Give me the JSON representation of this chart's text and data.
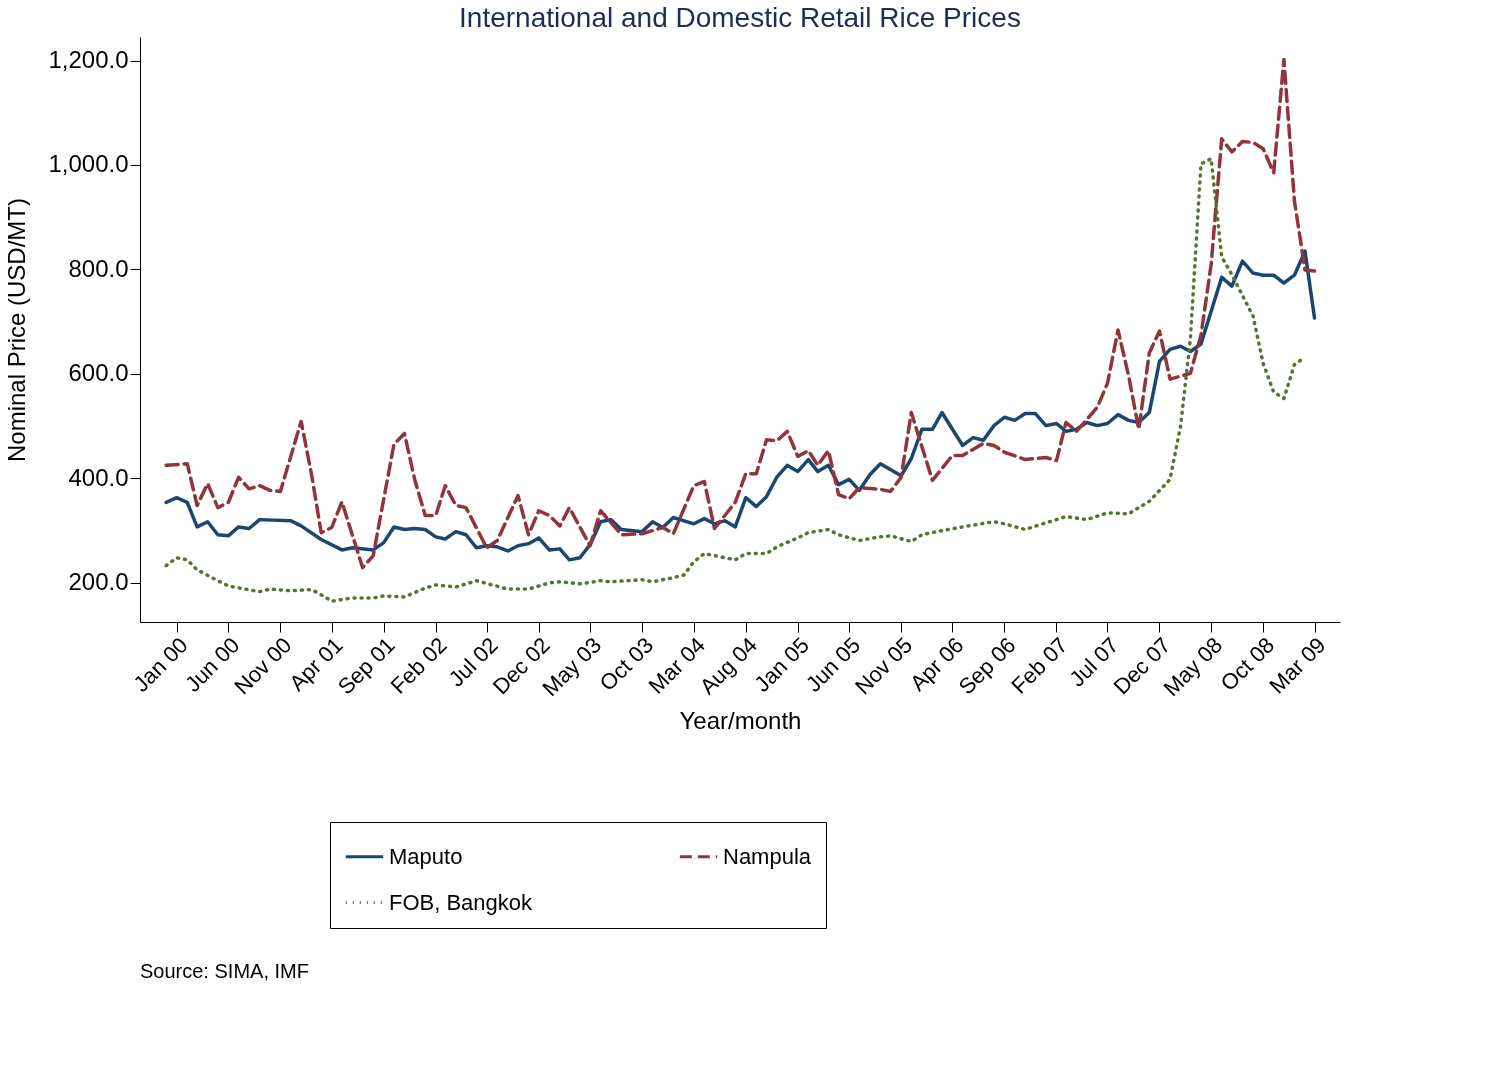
{
  "chart_data": {
    "type": "line",
    "title": "International and Domestic Retail Rice Prices",
    "xlabel": "Year/month",
    "ylabel": "Nominal Price (USD/MT)",
    "xlim": [
      "1999-09-15",
      "2009-05-15"
    ],
    "xticks": [
      {
        "value": "2000-01",
        "label": "Jan 00"
      },
      {
        "value": "2000-06",
        "label": "Jun 00"
      },
      {
        "value": "2000-11",
        "label": "Nov 00"
      },
      {
        "value": "2001-04",
        "label": "Apr 01"
      },
      {
        "value": "2001-09",
        "label": "Sep 01"
      },
      {
        "value": "2002-02",
        "label": "Feb 02"
      },
      {
        "value": "2002-07",
        "label": "Jul 02"
      },
      {
        "value": "2002-12",
        "label": "Dec 02"
      },
      {
        "value": "2003-05",
        "label": "May 03"
      },
      {
        "value": "2003-10",
        "label": "Oct 03"
      },
      {
        "value": "2004-03",
        "label": "Mar 04"
      },
      {
        "value": "2004-08",
        "label": "Aug 04"
      },
      {
        "value": "2005-01",
        "label": "Jan 05"
      },
      {
        "value": "2005-06",
        "label": "Jun 05"
      },
      {
        "value": "2005-11",
        "label": "Nov 05"
      },
      {
        "value": "2006-04",
        "label": "Apr 06"
      },
      {
        "value": "2006-09",
        "label": "Sep 06"
      },
      {
        "value": "2007-02",
        "label": "Feb 07"
      },
      {
        "value": "2007-07",
        "label": "Jul 07"
      },
      {
        "value": "2007-12",
        "label": "Dec 07"
      },
      {
        "value": "2008-05",
        "label": "May 08"
      },
      {
        "value": "2008-10",
        "label": "Oct 08"
      },
      {
        "value": "2009-03",
        "label": "Mar 09"
      }
    ],
    "ylim": [
      125,
      1245
    ],
    "yticks": [
      {
        "value": 200,
        "label": "200.0"
      },
      {
        "value": 400,
        "label": "400.0"
      },
      {
        "value": 600,
        "label": "600.0"
      },
      {
        "value": 800,
        "label": "800.0"
      },
      {
        "value": 1000,
        "label": "1,000.0"
      },
      {
        "value": 1200,
        "label": "1,200.0"
      }
    ],
    "grid": false,
    "legend": "bottom",
    "annotations": [
      "Source: SIMA, IMF"
    ],
    "series": [
      {
        "name": "Maputo",
        "color": "#1a476f",
        "line_style": "solid",
        "x": [
          "1999-12",
          "2000-01",
          "2000-02",
          "2000-03",
          "2000-04",
          "2000-05",
          "2000-06",
          "2000-07",
          "2000-08",
          "2000-09",
          "2000-12",
          "2001-01",
          "2001-03",
          "2001-05",
          "2001-06",
          "2001-08",
          "2001-09",
          "2001-10",
          "2001-11",
          "2001-12",
          "2002-01",
          "2002-02",
          "2002-03",
          "2002-04",
          "2002-05",
          "2002-06",
          "2002-07",
          "2002-08",
          "2002-09",
          "2002-10",
          "2002-11",
          "2002-12",
          "2003-01",
          "2003-02",
          "2003-03",
          "2003-04",
          "2003-05",
          "2003-06",
          "2003-07",
          "2003-08",
          "2003-10",
          "2003-11",
          "2003-12",
          "2004-01",
          "2004-03",
          "2004-04",
          "2004-05",
          "2004-06",
          "2004-07",
          "2004-08",
          "2004-09",
          "2004-10",
          "2004-11",
          "2004-12",
          "2005-01",
          "2005-02",
          "2005-03",
          "2005-04",
          "2005-05",
          "2005-06",
          "2005-07",
          "2005-08",
          "2005-09",
          "2005-11",
          "2005-12",
          "2006-01",
          "2006-02",
          "2006-03",
          "2006-05",
          "2006-06",
          "2006-07",
          "2006-08",
          "2006-09",
          "2006-10",
          "2006-11",
          "2006-12",
          "2007-01",
          "2007-02",
          "2007-03",
          "2007-04",
          "2007-05",
          "2007-06",
          "2007-07",
          "2007-08",
          "2007-09",
          "2007-10",
          "2007-11",
          "2007-12",
          "2008-01",
          "2008-02",
          "2008-03",
          "2008-04",
          "2008-06",
          "2008-07",
          "2008-08",
          "2008-09",
          "2008-10",
          "2008-11",
          "2008-12",
          "2009-01",
          "2009-02",
          "2009-03"
        ],
        "values": [
          354,
          363,
          354,
          307,
          317,
          292,
          290,
          307,
          304,
          321,
          319,
          309,
          283,
          263,
          267,
          263,
          277,
          307,
          302,
          304,
          302,
          288,
          284,
          298,
          292,
          267,
          271,
          269,
          261,
          271,
          275,
          286,
          263,
          265,
          244,
          248,
          273,
          317,
          321,
          302,
          298,
          317,
          306,
          325,
          313,
          323,
          313,
          319,
          307,
          363,
          346,
          365,
          403,
          425,
          413,
          436,
          413,
          425,
          388,
          398,
          377,
          407,
          428,
          405,
          438,
          494,
          494,
          526,
          463,
          478,
          473,
          501,
          517,
          511,
          524,
          524,
          501,
          505,
          490,
          494,
          507,
          501,
          505,
          522,
          511,
          507,
          526,
          624,
          647,
          653,
          643,
          657,
          785,
          768,
          816,
          793,
          789,
          789,
          774,
          789,
          835,
          707
        ]
      },
      {
        "name": "Nampula",
        "color": "#90353b",
        "line_style": "dashed",
        "x": [
          "1999-12",
          "2000-02",
          "2000-03",
          "2000-04",
          "2000-05",
          "2000-06",
          "2000-07",
          "2000-08",
          "2000-09",
          "2000-10",
          "2000-11",
          "2001-01",
          "2001-02",
          "2001-03",
          "2001-04",
          "2001-05",
          "2001-07",
          "2001-08",
          "2001-10",
          "2001-11",
          "2001-12",
          "2002-01",
          "2002-02",
          "2002-03",
          "2002-04",
          "2002-05",
          "2002-07",
          "2002-08",
          "2002-10",
          "2002-11",
          "2002-12",
          "2003-01",
          "2003-02",
          "2003-03",
          "2003-05",
          "2003-06",
          "2003-08",
          "2003-10",
          "2003-12",
          "2004-01",
          "2004-03",
          "2004-04",
          "2004-05",
          "2004-07",
          "2004-08",
          "2004-09",
          "2004-10",
          "2004-11",
          "2004-12",
          "2005-01",
          "2005-02",
          "2005-03",
          "2005-04",
          "2005-05",
          "2005-06",
          "2005-07",
          "2005-09",
          "2005-10",
          "2005-11",
          "2005-12",
          "2006-02",
          "2006-04",
          "2006-05",
          "2006-07",
          "2006-08",
          "2006-09",
          "2006-11",
          "2007-01",
          "2007-02",
          "2007-03",
          "2007-04",
          "2007-06",
          "2007-07",
          "2007-08",
          "2007-09",
          "2007-10",
          "2007-11",
          "2007-12",
          "2008-01",
          "2008-03",
          "2008-04",
          "2008-05",
          "2008-06",
          "2008-07",
          "2008-08",
          "2008-09",
          "2008-10",
          "2008-11",
          "2008-12",
          "2009-01",
          "2009-02",
          "2009-03"
        ],
        "values": [
          425,
          428,
          348,
          390,
          344,
          354,
          402,
          380,
          386,
          377,
          375,
          509,
          406,
          296,
          306,
          355,
          229,
          252,
          465,
          486,
          398,
          329,
          329,
          386,
          348,
          344,
          267,
          281,
          367,
          292,
          338,
          329,
          309,
          344,
          271,
          338,
          292,
          294,
          306,
          294,
          386,
          394,
          304,
          354,
          409,
          409,
          474,
          472,
          490,
          442,
          453,
          425,
          453,
          369,
          361,
          382,
          379,
          375,
          402,
          526,
          396,
          444,
          444,
          467,
          463,
          450,
          436,
          440,
          434,
          507,
          490,
          536,
          582,
          684,
          597,
          494,
          640,
          682,
          590,
          601,
          674,
          810,
          1050,
          1025,
          1045,
          1043,
          1031,
          985,
          1202,
          931,
          799,
          797
        ]
      },
      {
        "name": "FOB, Bangkok",
        "color": "#55752f",
        "line_style": "dotted",
        "x": [
          "1999-12",
          "2000-01",
          "2000-02",
          "2000-03",
          "2000-05",
          "2000-06",
          "2000-09",
          "2000-10",
          "2000-12",
          "2001-02",
          "2001-03",
          "2001-04",
          "2001-06",
          "2001-08",
          "2001-09",
          "2001-11",
          "2002-01",
          "2002-02",
          "2002-04",
          "2002-06",
          "2002-09",
          "2002-11",
          "2003-01",
          "2003-02",
          "2003-04",
          "2003-06",
          "2003-07",
          "2003-10",
          "2003-11",
          "2004-01",
          "2004-02",
          "2004-03",
          "2004-04",
          "2004-06",
          "2004-07",
          "2004-08",
          "2004-10",
          "2004-11",
          "2005-01",
          "2005-02",
          "2005-04",
          "2005-05",
          "2005-07",
          "2005-09",
          "2005-10",
          "2005-12",
          "2006-01",
          "2006-03",
          "2006-05",
          "2006-08",
          "2006-09",
          "2006-11",
          "2007-01",
          "2007-02",
          "2007-03",
          "2007-05",
          "2007-07",
          "2007-09",
          "2007-11",
          "2008-01",
          "2008-02",
          "2008-03",
          "2008-04",
          "2008-05",
          "2008-06",
          "2008-07",
          "2008-08",
          "2008-09",
          "2008-10",
          "2008-11",
          "2008-12",
          "2009-01",
          "2009-02"
        ],
        "values": [
          233,
          248,
          244,
          225,
          204,
          194,
          183,
          188,
          185,
          187,
          177,
          165,
          171,
          171,
          175,
          173,
          190,
          196,
          192,
          204,
          188,
          188,
          200,
          202,
          198,
          204,
          202,
          206,
          202,
          210,
          215,
          240,
          256,
          248,
          244,
          256,
          256,
          269,
          286,
          296,
          302,
          292,
          281,
          288,
          290,
          279,
          292,
          300,
          307,
          317,
          313,
          302,
          315,
          321,
          327,
          321,
          334,
          332,
          356,
          398,
          500,
          668,
          1002,
          1012,
          824,
          790,
          750,
          711,
          620,
          565,
          553,
          618,
          632
        ]
      }
    ]
  }
}
